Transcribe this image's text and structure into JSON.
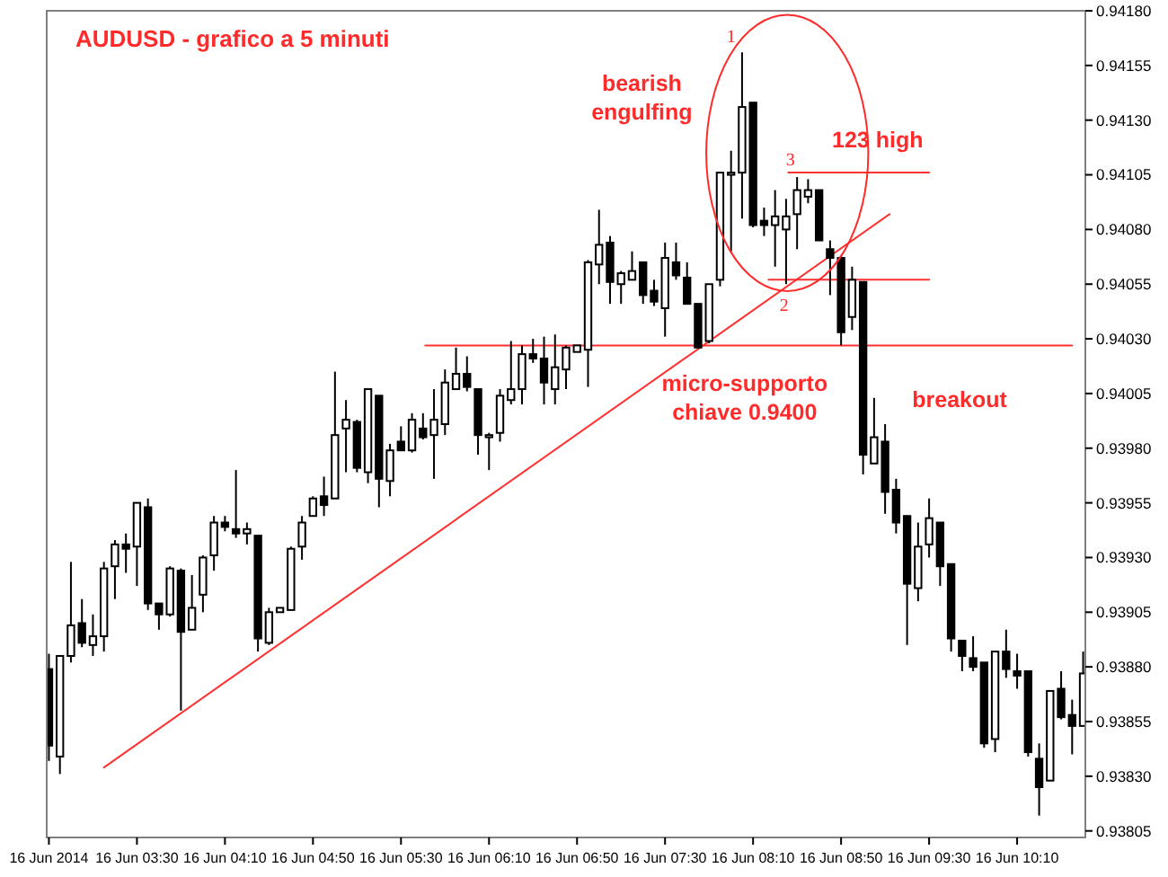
{
  "chart_data": {
    "type": "candlestick",
    "title": "AUDUSD - grafico a 5 minuti",
    "color": "#000000",
    "x": [
      "2014-06-16T02:50",
      "2014-06-16T02:55",
      "2014-06-16T03:00",
      "2014-06-16T03:05",
      "2014-06-16T03:10",
      "2014-06-16T03:15",
      "2014-06-16T03:20",
      "2014-06-16T03:25",
      "2014-06-16T03:30",
      "2014-06-16T03:35",
      "2014-06-16T03:40",
      "2014-06-16T03:45",
      "2014-06-16T03:50",
      "2014-06-16T03:55",
      "2014-06-16T04:00",
      "2014-06-16T04:05",
      "2014-06-16T04:10",
      "2014-06-16T04:15",
      "2014-06-16T04:20",
      "2014-06-16T04:25",
      "2014-06-16T04:30",
      "2014-06-16T04:35",
      "2014-06-16T04:40",
      "2014-06-16T04:45",
      "2014-06-16T04:50",
      "2014-06-16T04:55",
      "2014-06-16T05:00",
      "2014-06-16T05:05",
      "2014-06-16T05:10",
      "2014-06-16T05:15",
      "2014-06-16T05:20",
      "2014-06-16T05:25",
      "2014-06-16T05:30",
      "2014-06-16T05:35",
      "2014-06-16T05:40",
      "2014-06-16T05:45",
      "2014-06-16T05:50",
      "2014-06-16T05:55",
      "2014-06-16T06:00",
      "2014-06-16T06:05",
      "2014-06-16T06:10",
      "2014-06-16T06:15",
      "2014-06-16T06:20",
      "2014-06-16T06:25",
      "2014-06-16T06:30",
      "2014-06-16T06:35",
      "2014-06-16T06:40",
      "2014-06-16T06:45",
      "2014-06-16T06:50",
      "2014-06-16T06:55",
      "2014-06-16T07:00",
      "2014-06-16T07:05",
      "2014-06-16T07:10",
      "2014-06-16T07:15",
      "2014-06-16T07:20",
      "2014-06-16T07:25",
      "2014-06-16T07:30",
      "2014-06-16T07:35",
      "2014-06-16T07:40",
      "2014-06-16T07:45",
      "2014-06-16T07:50",
      "2014-06-16T07:55",
      "2014-06-16T08:00",
      "2014-06-16T08:05",
      "2014-06-16T08:10",
      "2014-06-16T08:15",
      "2014-06-16T08:20",
      "2014-06-16T08:25",
      "2014-06-16T08:30",
      "2014-06-16T08:35",
      "2014-06-16T08:40",
      "2014-06-16T08:45",
      "2014-06-16T08:50",
      "2014-06-16T08:55",
      "2014-06-16T09:00",
      "2014-06-16T09:05",
      "2014-06-16T09:10",
      "2014-06-16T09:15",
      "2014-06-16T09:20",
      "2014-06-16T09:25",
      "2014-06-16T09:30",
      "2014-06-16T09:35",
      "2014-06-16T09:40",
      "2014-06-16T09:45",
      "2014-06-16T09:50",
      "2014-06-16T09:55",
      "2014-06-16T10:00",
      "2014-06-16T10:05",
      "2014-06-16T10:10",
      "2014-06-16T10:15",
      "2014-06-16T10:20",
      "2014-06-16T10:25",
      "2014-06-16T10:30",
      "2014-06-16T10:35",
      "2014-06-16T10:40"
    ],
    "ohlc": [
      [
        0.93879,
        0.93886,
        0.93837,
        0.93844
      ],
      [
        0.93839,
        0.93885,
        0.93831,
        0.93885
      ],
      [
        0.93885,
        0.93928,
        0.93882,
        0.93899
      ],
      [
        0.939,
        0.93911,
        0.93889,
        0.93891
      ],
      [
        0.9389,
        0.93904,
        0.93885,
        0.93894
      ],
      [
        0.93894,
        0.93928,
        0.93887,
        0.93925
      ],
      [
        0.93926,
        0.93938,
        0.93911,
        0.93936
      ],
      [
        0.93936,
        0.93941,
        0.93923,
        0.93934
      ],
      [
        0.93935,
        0.93955,
        0.93917,
        0.93955
      ],
      [
        0.93953,
        0.93957,
        0.93906,
        0.93909
      ],
      [
        0.93909,
        0.93909,
        0.93897,
        0.93904
      ],
      [
        0.93904,
        0.93926,
        0.93903,
        0.93925
      ],
      [
        0.93924,
        0.93925,
        0.9386,
        0.93896
      ],
      [
        0.93897,
        0.93922,
        0.93897,
        0.93907
      ],
      [
        0.93913,
        0.93931,
        0.93905,
        0.9393
      ],
      [
        0.93931,
        0.93949,
        0.93924,
        0.93946
      ],
      [
        0.93946,
        0.93949,
        0.93942,
        0.93944
      ],
      [
        0.93943,
        0.9397,
        0.93939,
        0.93941
      ],
      [
        0.93941,
        0.93946,
        0.93936,
        0.93943
      ],
      [
        0.9394,
        0.9394,
        0.93887,
        0.93893
      ],
      [
        0.93891,
        0.93907,
        0.9389,
        0.93905
      ],
      [
        0.93905,
        0.93907,
        0.93905,
        0.93907
      ],
      [
        0.93906,
        0.93935,
        0.93906,
        0.93934
      ],
      [
        0.93935,
        0.93949,
        0.93929,
        0.93946
      ],
      [
        0.93949,
        0.93958,
        0.93949,
        0.93957
      ],
      [
        0.93958,
        0.93967,
        0.93949,
        0.93954
      ],
      [
        0.93957,
        0.94015,
        0.93957,
        0.93986
      ],
      [
        0.93989,
        0.94002,
        0.93969,
        0.93993
      ],
      [
        0.93992,
        0.93993,
        0.93969,
        0.93971
      ],
      [
        0.93969,
        0.94007,
        0.93964,
        0.94007
      ],
      [
        0.94004,
        0.94004,
        0.93953,
        0.93966
      ],
      [
        0.93965,
        0.93982,
        0.93958,
        0.93979
      ],
      [
        0.93983,
        0.9399,
        0.93979,
        0.93979
      ],
      [
        0.93979,
        0.93996,
        0.93978,
        0.93993
      ],
      [
        0.93989,
        0.93996,
        0.93984,
        0.93985
      ],
      [
        0.93986,
        0.94007,
        0.93966,
        0.93993
      ],
      [
        0.93991,
        0.94016,
        0.93986,
        0.9401
      ],
      [
        0.94007,
        0.94026,
        0.94007,
        0.94014
      ],
      [
        0.94014,
        0.94022,
        0.94006,
        0.94008
      ],
      [
        0.94007,
        0.94007,
        0.93977,
        0.93986
      ],
      [
        0.93985,
        0.93987,
        0.9397,
        0.93986
      ],
      [
        0.93987,
        0.94007,
        0.93983,
        0.94004
      ],
      [
        0.94002,
        0.94029,
        0.94,
        0.94007
      ],
      [
        0.94007,
        0.94027,
        0.94,
        0.94023
      ],
      [
        0.94023,
        0.9403,
        0.94019,
        0.94021
      ],
      [
        0.94021,
        0.94031,
        0.94,
        0.9401
      ],
      [
        0.94007,
        0.94032,
        0.94,
        0.94017
      ],
      [
        0.94016,
        0.94027,
        0.94007,
        0.94026
      ],
      [
        0.94024,
        0.94027,
        0.94024,
        0.94027
      ],
      [
        0.94025,
        0.94066,
        0.94008,
        0.94065
      ],
      [
        0.94064,
        0.94089,
        0.94055,
        0.94073
      ],
      [
        0.94074,
        0.94077,
        0.94046,
        0.94056
      ],
      [
        0.94055,
        0.94061,
        0.94046,
        0.9406
      ],
      [
        0.94057,
        0.9407,
        0.94057,
        0.94061
      ],
      [
        0.94065,
        0.94065,
        0.94046,
        0.9405
      ],
      [
        0.94052,
        0.94057,
        0.94045,
        0.94047
      ],
      [
        0.94044,
        0.94074,
        0.94031,
        0.94067
      ],
      [
        0.94065,
        0.94074,
        0.94057,
        0.94059
      ],
      [
        0.94058,
        0.94065,
        0.94046,
        0.94046
      ],
      [
        0.94046,
        0.94046,
        0.94026,
        0.94026
      ],
      [
        0.94029,
        0.94055,
        0.94028,
        0.94055
      ],
      [
        0.94057,
        0.94106,
        0.94054,
        0.94106
      ],
      [
        0.94105,
        0.94116,
        0.9407,
        0.94106
      ],
      [
        0.94106,
        0.94161,
        0.94085,
        0.94136
      ],
      [
        0.94138,
        0.94138,
        0.94081,
        0.94082
      ],
      [
        0.94084,
        0.9409,
        0.94077,
        0.94082
      ],
      [
        0.94082,
        0.94098,
        0.94063,
        0.94086
      ],
      [
        0.9408,
        0.94094,
        0.94055,
        0.94086
      ],
      [
        0.94087,
        0.94104,
        0.94071,
        0.94098
      ],
      [
        0.94095,
        0.94103,
        0.94092,
        0.94098
      ],
      [
        0.94098,
        0.94098,
        0.94075,
        0.94075
      ],
      [
        0.94071,
        0.94075,
        0.9405,
        0.94067
      ],
      [
        0.94067,
        0.94068,
        0.94027,
        0.94033
      ],
      [
        0.9404,
        0.94063,
        0.94034,
        0.94057
      ],
      [
        0.94056,
        0.94056,
        0.93968,
        0.93977
      ],
      [
        0.93973,
        0.94003,
        0.93973,
        0.93985
      ],
      [
        0.93983,
        0.93991,
        0.9395,
        0.9396
      ],
      [
        0.93961,
        0.93966,
        0.93941,
        0.93946
      ],
      [
        0.93949,
        0.93949,
        0.9389,
        0.93918
      ],
      [
        0.93916,
        0.93946,
        0.9391,
        0.93935
      ],
      [
        0.93936,
        0.93957,
        0.9393,
        0.93948
      ],
      [
        0.93946,
        0.93946,
        0.93917,
        0.93926
      ],
      [
        0.93927,
        0.93927,
        0.93887,
        0.93893
      ],
      [
        0.93892,
        0.93892,
        0.93878,
        0.93885
      ],
      [
        0.93884,
        0.93894,
        0.93878,
        0.9388
      ],
      [
        0.93882,
        0.93882,
        0.93843,
        0.93845
      ],
      [
        0.93847,
        0.93887,
        0.93841,
        0.93887
      ],
      [
        0.93887,
        0.93897,
        0.93875,
        0.93879
      ],
      [
        0.93878,
        0.93886,
        0.9387,
        0.93876
      ],
      [
        0.93878,
        0.93878,
        0.93839,
        0.93841
      ],
      [
        0.93838,
        0.93845,
        0.93812,
        0.93825
      ],
      [
        0.93828,
        0.93869,
        0.93828,
        0.93869
      ],
      [
        0.9387,
        0.93878,
        0.93856,
        0.93857
      ],
      [
        0.93858,
        0.93865,
        0.9384,
        0.93853
      ],
      [
        0.93853,
        0.93887,
        0.93853,
        0.93877
      ]
    ],
    "series": [
      {
        "type": "line",
        "color": "#ff3030",
        "x": [
          "2014-06-16T03:15",
          "2014-06-16T09:12"
        ],
        "values": [
          0.93834,
          0.94087
        ]
      },
      {
        "type": "line",
        "color": "#ff3030",
        "x": [
          "2014-06-16T05:41",
          "2014-06-16T10:35"
        ],
        "values": [
          0.94027,
          0.94027
        ]
      },
      {
        "type": "line",
        "color": "#ff3030",
        "x": [
          "2014-06-16T08:26",
          "2014-06-16T09:30"
        ],
        "values": [
          0.94106,
          0.94106
        ]
      },
      {
        "type": "line",
        "color": "#ff3030",
        "x": [
          "2014-06-16T08:17",
          "2014-06-16T09:30"
        ],
        "values": [
          0.94057,
          0.94057
        ]
      }
    ],
    "annotations": [
      "bearish engulfing",
      "123 high",
      "micro-supporto chiave 0.9400",
      "breakout",
      "1",
      "2",
      "3"
    ],
    "xlim": [
      "2014-06-16T02:49",
      "2014-06-16T10:41"
    ],
    "xticks": [
      {
        "value": "2014-06-16T02:50",
        "label": "16 Jun 2014"
      },
      {
        "value": "2014-06-16T03:30",
        "label": "16 Jun 03:30"
      },
      {
        "value": "2014-06-16T04:10",
        "label": "16 Jun 04:10"
      },
      {
        "value": "2014-06-16T04:50",
        "label": "16 Jun 04:50"
      },
      {
        "value": "2014-06-16T05:30",
        "label": "16 Jun 05:30"
      },
      {
        "value": "2014-06-16T06:10",
        "label": "16 Jun 06:10"
      },
      {
        "value": "2014-06-16T06:50",
        "label": "16 Jun 06:50"
      },
      {
        "value": "2014-06-16T07:30",
        "label": "16 Jun 07:30"
      },
      {
        "value": "2014-06-16T08:10",
        "label": "16 Jun 08:10"
      },
      {
        "value": "2014-06-16T08:50",
        "label": "16 Jun 08:50"
      },
      {
        "value": "2014-06-16T09:30",
        "label": "16 Jun 09:30"
      },
      {
        "value": "2014-06-16T10:10",
        "label": "16 Jun 10:10"
      }
    ],
    "ylim": [
      0.93802,
      0.9418
    ],
    "yticks": [
      {
        "value": 0.93805,
        "label": "0.93805"
      },
      {
        "value": 0.9383,
        "label": "0.93830"
      },
      {
        "value": 0.93855,
        "label": "0.93855"
      },
      {
        "value": 0.9388,
        "label": "0.93880"
      },
      {
        "value": 0.93905,
        "label": "0.93905"
      },
      {
        "value": 0.9393,
        "label": "0.93930"
      },
      {
        "value": 0.93955,
        "label": "0.93955"
      },
      {
        "value": 0.9398,
        "label": "0.93980"
      },
      {
        "value": 0.94005,
        "label": "0.94005"
      },
      {
        "value": 0.9403,
        "label": "0.94030"
      },
      {
        "value": 0.94055,
        "label": "0.94055"
      },
      {
        "value": 0.9408,
        "label": "0.94080"
      },
      {
        "value": 0.94105,
        "label": "0.94105"
      },
      {
        "value": 0.9413,
        "label": "0.94130"
      },
      {
        "value": 0.94155,
        "label": "0.94155"
      },
      {
        "value": 0.9418,
        "label": "0.94180"
      }
    ]
  }
}
